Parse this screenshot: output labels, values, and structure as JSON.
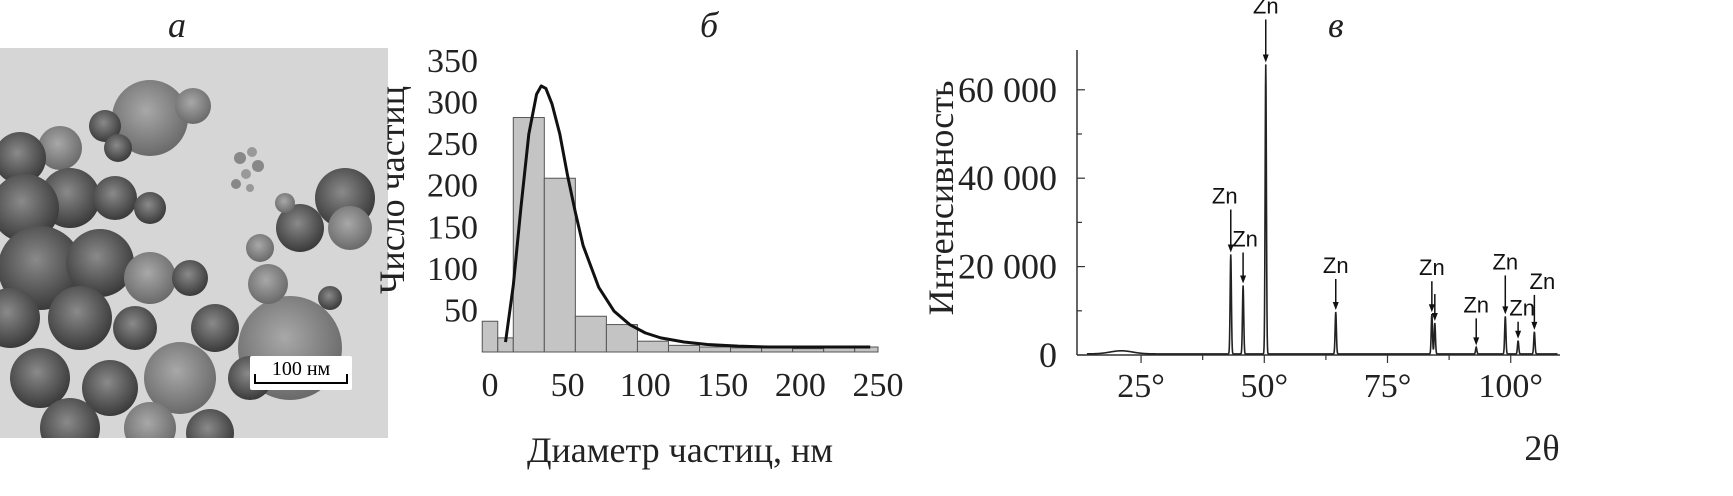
{
  "panels": {
    "a": {
      "letter": "а",
      "scale_label": "100 нм"
    },
    "b": {
      "letter": "б"
    },
    "c": {
      "letter": "в"
    }
  },
  "chart_data": [
    {
      "type": "bar",
      "panel": "б",
      "xlabel": "Диаметр частиц, нм",
      "ylabel": "Число частиц",
      "xlim": [
        0,
        250
      ],
      "ylim": [
        0,
        350
      ],
      "xticks": [
        0,
        50,
        100,
        150,
        200,
        250
      ],
      "yticks": [
        50,
        100,
        150,
        200,
        250,
        300,
        350
      ],
      "bins": [
        {
          "x0": -5,
          "x1": 5,
          "value": 37
        },
        {
          "x0": 5,
          "x1": 15,
          "value": 17
        },
        {
          "x0": 15,
          "x1": 35,
          "value": 282
        },
        {
          "x0": 35,
          "x1": 55,
          "value": 209
        },
        {
          "x0": 55,
          "x1": 75,
          "value": 43
        },
        {
          "x0": 75,
          "x1": 95,
          "value": 33
        },
        {
          "x0": 95,
          "x1": 115,
          "value": 13
        },
        {
          "x0": 115,
          "x1": 135,
          "value": 8
        },
        {
          "x0": 135,
          "x1": 155,
          "value": 6
        },
        {
          "x0": 155,
          "x1": 175,
          "value": 5
        },
        {
          "x0": 175,
          "x1": 195,
          "value": 5
        },
        {
          "x0": 195,
          "x1": 215,
          "value": 4
        },
        {
          "x0": 215,
          "x1": 235,
          "value": 5
        },
        {
          "x0": 235,
          "x1": 250,
          "value": 6
        }
      ],
      "fit_curve": {
        "x": [
          10,
          15,
          20,
          25,
          30,
          33,
          36,
          40,
          45,
          50,
          55,
          60,
          70,
          80,
          90,
          100,
          110,
          125,
          140,
          160,
          180,
          200,
          220,
          245
        ],
        "y": [
          12,
          80,
          175,
          262,
          310,
          320,
          317,
          298,
          262,
          212,
          168,
          128,
          78,
          49,
          33,
          23,
          17,
          12,
          9,
          7,
          6,
          6,
          6,
          6
        ]
      }
    },
    {
      "type": "line",
      "panel": "в",
      "xlabel": "2θ",
      "ylabel": "Интенсивность",
      "xlim": [
        12,
        110
      ],
      "ylim": [
        0,
        69000
      ],
      "xticks": [
        25,
        50,
        75,
        100
      ],
      "xtick_labels": [
        "25°",
        "50°",
        "75°",
        "100°"
      ],
      "yticks": [
        0,
        20000,
        40000,
        60000
      ],
      "ytick_labels": [
        "0",
        "20 000",
        "40 000",
        "60 000"
      ],
      "peaks": [
        {
          "x": 43.2,
          "y": 22500,
          "label": "Zn"
        },
        {
          "x": 45.7,
          "y": 15500,
          "label": "Zn"
        },
        {
          "x": 50.3,
          "y": 65500,
          "label": "Zn"
        },
        {
          "x": 64.5,
          "y": 9500,
          "label": "Zn"
        },
        {
          "x": 84.0,
          "y": 9000,
          "label": "Zn"
        },
        {
          "x": 84.6,
          "y": 7000,
          "label": ""
        },
        {
          "x": 93.0,
          "y": 1500,
          "label": "Zn"
        },
        {
          "x": 98.9,
          "y": 8500,
          "label": "Zn"
        },
        {
          "x": 101.5,
          "y": 3000,
          "label": "Zn"
        },
        {
          "x": 104.8,
          "y": 5000,
          "label": "Zn"
        }
      ]
    }
  ]
}
